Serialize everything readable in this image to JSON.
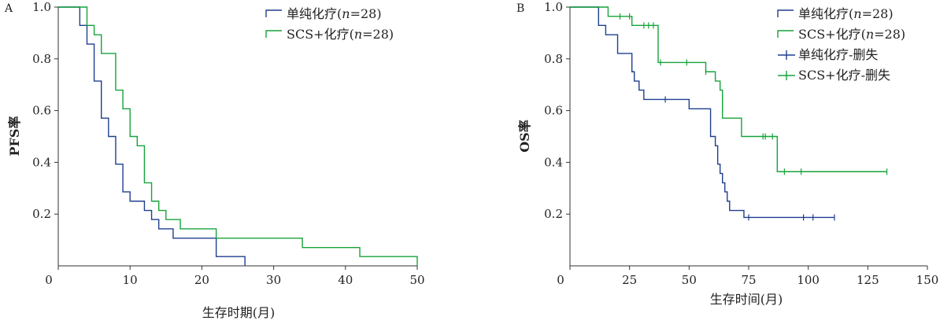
{
  "chart_data": [
    {
      "type": "line",
      "step": true,
      "panel_label": "A",
      "xlabel": "生存时期(月)",
      "ylabel": "PFS率",
      "xlim": [
        0,
        50
      ],
      "ylim": [
        0,
        1.0
      ],
      "xticks": [
        0,
        10,
        20,
        30,
        40,
        50
      ],
      "yticks": [
        0.2,
        0.4,
        0.6,
        0.8,
        1.0
      ],
      "ytick_labels": [
        "0.2",
        "0.4",
        "0.6",
        "0.8",
        "1.0"
      ],
      "legend_position": "top-right",
      "grid": false,
      "series": [
        {
          "name": "单纯化疗",
          "n": "28",
          "color": "#1f3f8f",
          "x": [
            0,
            3,
            4,
            5,
            6,
            7,
            8,
            9,
            10,
            12,
            13,
            14,
            16,
            22,
            26
          ],
          "y": [
            1.0,
            0.929,
            0.857,
            0.714,
            0.571,
            0.5,
            0.393,
            0.286,
            0.25,
            0.214,
            0.179,
            0.143,
            0.107,
            0.036,
            0.0
          ]
        },
        {
          "name": "SCS+化疗",
          "n": "28",
          "color": "#17a33b",
          "x": [
            0,
            4,
            5,
            6,
            8,
            9,
            10,
            11,
            12,
            13,
            14,
            15,
            17,
            22,
            34,
            42,
            50
          ],
          "y": [
            1.0,
            0.929,
            0.893,
            0.821,
            0.679,
            0.607,
            0.5,
            0.464,
            0.321,
            0.25,
            0.214,
            0.179,
            0.143,
            0.107,
            0.071,
            0.036,
            0.0
          ]
        }
      ]
    },
    {
      "type": "line",
      "step": true,
      "panel_label": "B",
      "xlabel": "生存时间(月)",
      "ylabel": "OS率",
      "xlim": [
        0,
        150
      ],
      "ylim": [
        0,
        1.0
      ],
      "xticks": [
        0,
        25,
        50,
        75,
        100,
        125,
        150
      ],
      "xtick_labels": [
        "0",
        "25",
        "50",
        "75",
        "100",
        "125",
        "150"
      ],
      "yticks": [
        0.2,
        0.4,
        0.6,
        0.8,
        1.0
      ],
      "ytick_labels": [
        "0.2",
        "0.4",
        "0.6",
        "0.8",
        "1.0"
      ],
      "legend_position": "top-right",
      "grid": false,
      "series": [
        {
          "name": "单纯化疗",
          "n": "28",
          "color": "#1f3f8f",
          "x": [
            0,
            12,
            15,
            20,
            26,
            27,
            29,
            31,
            34,
            50,
            59,
            61,
            62,
            63,
            64,
            65,
            66,
            67,
            73,
            111
          ],
          "y": [
            1.0,
            0.929,
            0.893,
            0.821,
            0.75,
            0.714,
            0.679,
            0.643,
            0.643,
            0.607,
            0.5,
            0.464,
            0.393,
            0.357,
            0.321,
            0.286,
            0.25,
            0.214,
            0.187,
            0.187
          ],
          "censored_x": [
            40,
            75,
            98,
            102,
            111
          ]
        },
        {
          "name": "SCS+化疗",
          "n": "28",
          "color": "#17a33b",
          "x": [
            0,
            16,
            26,
            37,
            57,
            61,
            63,
            64,
            72,
            87,
            133
          ],
          "y": [
            1.0,
            0.964,
            0.929,
            0.786,
            0.75,
            0.714,
            0.679,
            0.571,
            0.5,
            0.364,
            0.364
          ],
          "censored_x": [
            21,
            25,
            31,
            33,
            35,
            38,
            49,
            57,
            81,
            82,
            85,
            90,
            97,
            133
          ]
        }
      ],
      "censor_legend": [
        {
          "name": "单纯化疗-删失",
          "color": "#1f3f8f"
        },
        {
          "name": "SCS+化疗-删失",
          "color": "#17a33b"
        }
      ]
    }
  ]
}
